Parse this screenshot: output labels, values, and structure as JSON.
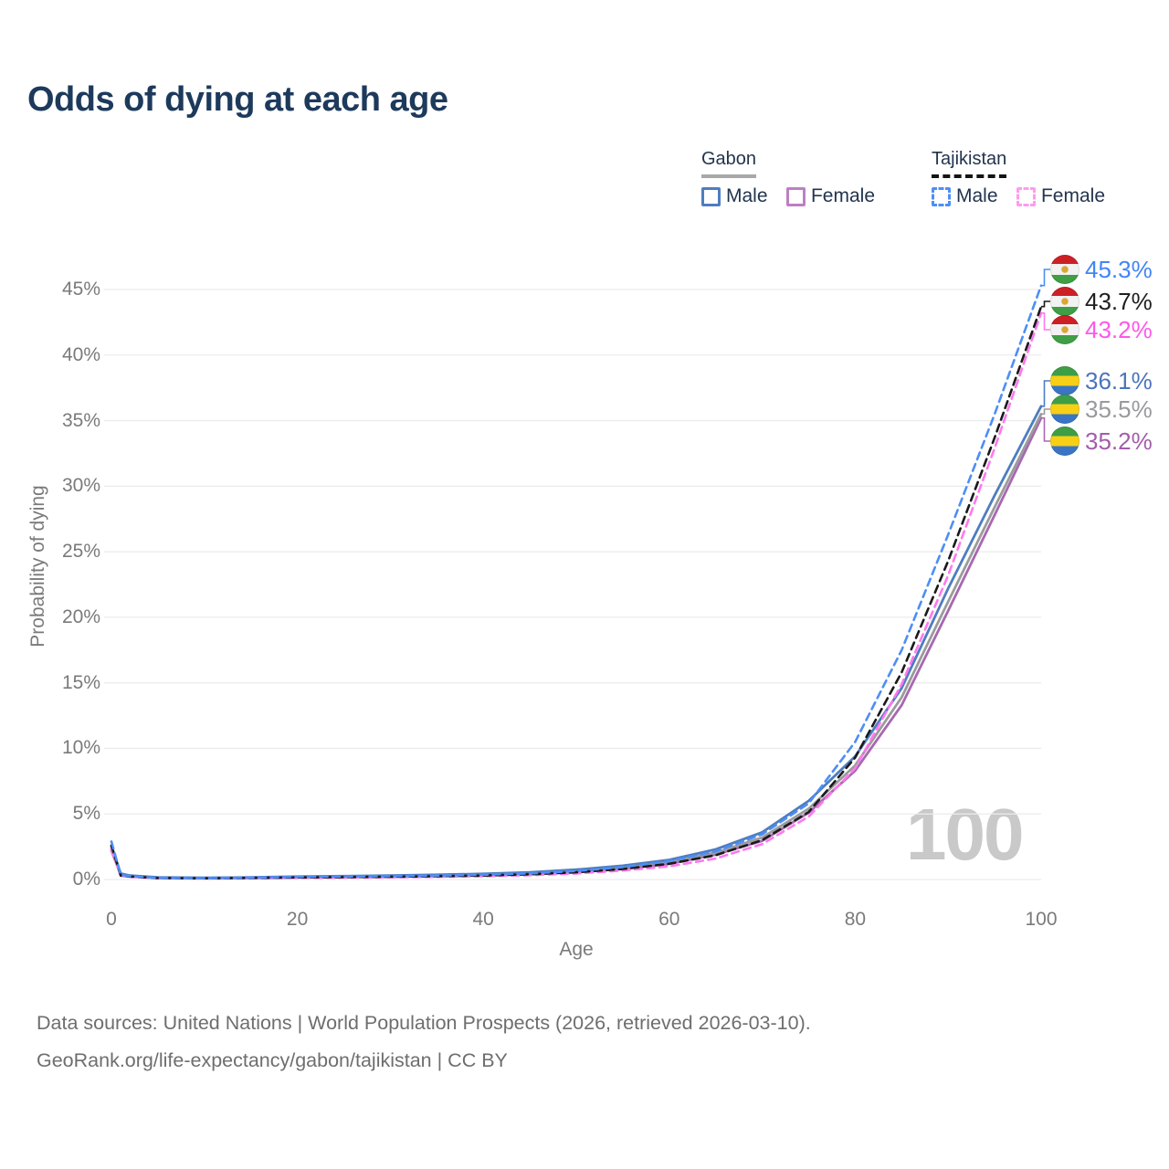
{
  "title": "Odds of dying at each age",
  "legend": {
    "groups": [
      {
        "country": "Gabon",
        "line_style": "solid",
        "underline_color": "#a8a8a8",
        "items": [
          {
            "label": "Male",
            "color": "#4e7dc0"
          },
          {
            "label": "Female",
            "color": "#bd7fc4"
          }
        ]
      },
      {
        "country": "Tajikistan",
        "line_style": "dashed",
        "underline_color": "#141414",
        "items": [
          {
            "label": "Male",
            "color": "#4d8ef7"
          },
          {
            "label": "Female",
            "color": "#ff9bef"
          }
        ]
      }
    ]
  },
  "axes": {
    "x": {
      "label": "Age",
      "ticks": [
        "0",
        "20",
        "40",
        "60",
        "80",
        "100"
      ],
      "tick_values": [
        0,
        20,
        40,
        60,
        80,
        100
      ],
      "min": 0,
      "max": 100
    },
    "y": {
      "label": "Probability of dying",
      "ticks": [
        "0%",
        "5%",
        "10%",
        "15%",
        "20%",
        "25%",
        "30%",
        "35%",
        "40%",
        "45%"
      ],
      "tick_values": [
        0,
        5,
        10,
        15,
        20,
        25,
        30,
        35,
        40,
        45
      ],
      "min": 0,
      "max": 45,
      "grid": true
    }
  },
  "watermark": "100",
  "end_labels": [
    {
      "value": "45.3%",
      "flag": "tajikistan",
      "color": "#4285f4"
    },
    {
      "value": "43.7%",
      "flag": "tajikistan",
      "color": "#1f1f1f"
    },
    {
      "value": "43.2%",
      "flag": "tajikistan",
      "color": "#ff57e8"
    },
    {
      "value": "36.1%",
      "flag": "gabon",
      "color": "#4b74ba"
    },
    {
      "value": "35.5%",
      "flag": "gabon",
      "color": "#9a9a9e"
    },
    {
      "value": "35.2%",
      "flag": "gabon",
      "color": "#a45cab"
    }
  ],
  "chart_data": {
    "type": "line",
    "title": "Odds of dying at each age",
    "xlabel": "Age",
    "ylabel": "Probability of dying",
    "xlim": [
      0,
      100
    ],
    "ylim": [
      0,
      45
    ],
    "y_unit": "%",
    "grid": "horizontal",
    "legend_position": "top-right",
    "series": [
      {
        "name": "Gabon Female",
        "country": "Gabon",
        "sex": "Female",
        "color": "#a868b2",
        "dash": false,
        "end_value": 35.2,
        "end_label_index": 5,
        "points": [
          [
            0,
            2.2
          ],
          [
            1,
            0.36
          ],
          [
            2,
            0.25
          ],
          [
            5,
            0.13
          ],
          [
            10,
            0.1
          ],
          [
            15,
            0.12
          ],
          [
            20,
            0.16
          ],
          [
            25,
            0.19
          ],
          [
            30,
            0.22
          ],
          [
            35,
            0.27
          ],
          [
            40,
            0.32
          ],
          [
            45,
            0.42
          ],
          [
            50,
            0.57
          ],
          [
            55,
            0.82
          ],
          [
            60,
            1.2
          ],
          [
            65,
            1.9
          ],
          [
            70,
            2.95
          ],
          [
            75,
            5.1
          ],
          [
            80,
            8.3
          ],
          [
            85,
            13.3
          ],
          [
            90,
            20.5
          ],
          [
            95,
            27.8
          ],
          [
            100,
            35.2
          ]
        ]
      },
      {
        "name": "Gabon Both sexes",
        "country": "Gabon",
        "sex": "Both",
        "color": "#9b9b9b",
        "dash": false,
        "end_value": 35.5,
        "end_label_index": 4,
        "points": [
          [
            0,
            2.4
          ],
          [
            1,
            0.4
          ],
          [
            2,
            0.28
          ],
          [
            5,
            0.14
          ],
          [
            10,
            0.12
          ],
          [
            15,
            0.14
          ],
          [
            20,
            0.19
          ],
          [
            25,
            0.22
          ],
          [
            30,
            0.26
          ],
          [
            35,
            0.31
          ],
          [
            40,
            0.37
          ],
          [
            45,
            0.48
          ],
          [
            50,
            0.65
          ],
          [
            55,
            0.92
          ],
          [
            60,
            1.35
          ],
          [
            65,
            2.05
          ],
          [
            70,
            3.2
          ],
          [
            75,
            5.4
          ],
          [
            80,
            8.7
          ],
          [
            85,
            13.9
          ],
          [
            90,
            21.2
          ],
          [
            95,
            28.4
          ],
          [
            100,
            35.5
          ]
        ]
      },
      {
        "name": "Gabon Male",
        "country": "Gabon",
        "sex": "Male",
        "color": "#4e7dc0",
        "dash": false,
        "end_value": 36.1,
        "end_label_index": 3,
        "points": [
          [
            0,
            2.55
          ],
          [
            1,
            0.45
          ],
          [
            2,
            0.3
          ],
          [
            5,
            0.16
          ],
          [
            10,
            0.13
          ],
          [
            15,
            0.16
          ],
          [
            20,
            0.22
          ],
          [
            25,
            0.26
          ],
          [
            30,
            0.3
          ],
          [
            35,
            0.36
          ],
          [
            40,
            0.43
          ],
          [
            45,
            0.55
          ],
          [
            50,
            0.75
          ],
          [
            55,
            1.05
          ],
          [
            60,
            1.5
          ],
          [
            65,
            2.3
          ],
          [
            70,
            3.6
          ],
          [
            75,
            6.0
          ],
          [
            80,
            9.4
          ],
          [
            85,
            14.6
          ],
          [
            90,
            22.2
          ],
          [
            95,
            29.3
          ],
          [
            100,
            36.1
          ]
        ]
      },
      {
        "name": "Tajikistan Female",
        "country": "Tajikistan",
        "sex": "Female",
        "color": "#ff78ee",
        "dash": true,
        "end_value": 43.2,
        "end_label_index": 2,
        "points": [
          [
            0,
            2.3
          ],
          [
            1,
            0.27
          ],
          [
            2,
            0.2
          ],
          [
            5,
            0.09
          ],
          [
            10,
            0.07
          ],
          [
            15,
            0.09
          ],
          [
            20,
            0.12
          ],
          [
            25,
            0.14
          ],
          [
            30,
            0.17
          ],
          [
            35,
            0.2
          ],
          [
            40,
            0.25
          ],
          [
            45,
            0.33
          ],
          [
            50,
            0.46
          ],
          [
            55,
            0.68
          ],
          [
            60,
            1.0
          ],
          [
            65,
            1.6
          ],
          [
            70,
            2.7
          ],
          [
            75,
            4.8
          ],
          [
            80,
            8.5
          ],
          [
            85,
            14.9
          ],
          [
            90,
            23.2
          ],
          [
            95,
            32.9
          ],
          [
            100,
            43.2
          ]
        ]
      },
      {
        "name": "Tajikistan Both sexes",
        "country": "Tajikistan",
        "sex": "Both",
        "color": "#1a1a1a",
        "dash": true,
        "end_value": 43.7,
        "end_label_index": 1,
        "points": [
          [
            0,
            2.6
          ],
          [
            1,
            0.3
          ],
          [
            2,
            0.22
          ],
          [
            5,
            0.11
          ],
          [
            10,
            0.09
          ],
          [
            15,
            0.12
          ],
          [
            20,
            0.16
          ],
          [
            25,
            0.18
          ],
          [
            30,
            0.21
          ],
          [
            35,
            0.25
          ],
          [
            40,
            0.3
          ],
          [
            45,
            0.4
          ],
          [
            50,
            0.55
          ],
          [
            55,
            0.8
          ],
          [
            60,
            1.2
          ],
          [
            65,
            1.85
          ],
          [
            70,
            3.0
          ],
          [
            75,
            5.15
          ],
          [
            80,
            9.3
          ],
          [
            85,
            15.8
          ],
          [
            90,
            24.3
          ],
          [
            95,
            33.7
          ],
          [
            100,
            43.7
          ]
        ]
      },
      {
        "name": "Tajikistan Male",
        "country": "Tajikistan",
        "sex": "Male",
        "color": "#4d8ef7",
        "dash": true,
        "end_value": 45.3,
        "end_label_index": 0,
        "points": [
          [
            0,
            2.9
          ],
          [
            1,
            0.35
          ],
          [
            2,
            0.25
          ],
          [
            5,
            0.12
          ],
          [
            10,
            0.1
          ],
          [
            15,
            0.14
          ],
          [
            20,
            0.2
          ],
          [
            25,
            0.23
          ],
          [
            30,
            0.26
          ],
          [
            35,
            0.3
          ],
          [
            40,
            0.36
          ],
          [
            45,
            0.47
          ],
          [
            50,
            0.65
          ],
          [
            55,
            0.95
          ],
          [
            60,
            1.4
          ],
          [
            65,
            2.15
          ],
          [
            70,
            3.45
          ],
          [
            75,
            5.8
          ],
          [
            80,
            10.5
          ],
          [
            85,
            17.5
          ],
          [
            90,
            26.3
          ],
          [
            95,
            35.5
          ],
          [
            100,
            45.3
          ]
        ]
      }
    ]
  },
  "footer": {
    "line1": "Data sources: United Nations | World Population Prospects (2026, retrieved 2026-03-10).",
    "line2": "GeoRank.org/life-expectancy/gabon/tajikistan | CC BY"
  }
}
